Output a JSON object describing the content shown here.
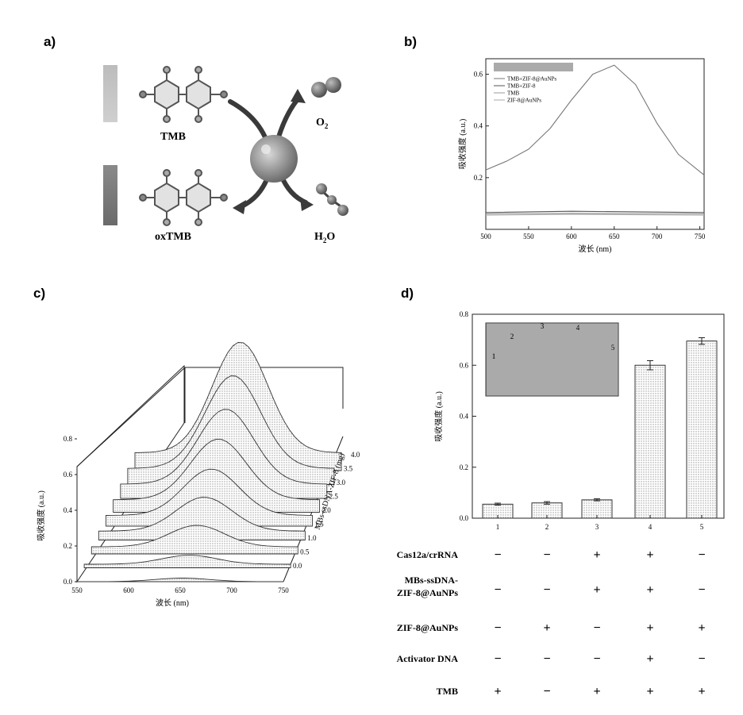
{
  "panels": {
    "a": "a)",
    "b": "b)",
    "c": "c)",
    "d": "d)"
  },
  "scheme": {
    "tmb": "TMB",
    "oxtmb": "oxTMB",
    "o2": "O",
    "o2_sub": "2",
    "h2o_h": "H",
    "h2o_sub": "2",
    "h2o_o": "O"
  },
  "chart_data": [
    {
      "id": "b",
      "type": "line",
      "xlabel": "波长 (nm)",
      "ylabel": "吸收强度 (a.u.)",
      "xlim": [
        500,
        755
      ],
      "ylim": [
        0,
        0.66
      ],
      "xticks": [
        500,
        550,
        600,
        650,
        700,
        750
      ],
      "yticks": [
        0.2,
        0.4,
        0.6
      ],
      "legend_position": "top-left",
      "series": [
        {
          "name": "TMB+ZIF-8@AuNPs",
          "color": "#777777",
          "x": [
            500,
            525,
            550,
            575,
            600,
            625,
            650,
            675,
            700,
            725,
            755
          ],
          "y": [
            0.23,
            0.265,
            0.31,
            0.39,
            0.5,
            0.6,
            0.635,
            0.56,
            0.41,
            0.29,
            0.21
          ]
        },
        {
          "name": "TMB+ZIF-8",
          "color": "#555555",
          "x": [
            500,
            600,
            755
          ],
          "y": [
            0.065,
            0.07,
            0.065
          ]
        },
        {
          "name": "TMB",
          "color": "#999999",
          "x": [
            500,
            600,
            755
          ],
          "y": [
            0.06,
            0.062,
            0.06
          ]
        },
        {
          "name": "ZIF-8@AuNPs",
          "color": "#aaaaaa",
          "x": [
            500,
            600,
            755
          ],
          "y": [
            0.055,
            0.058,
            0.055
          ]
        }
      ]
    },
    {
      "id": "c",
      "type": "line",
      "xlabel": "波长 (nm)",
      "ylabel": "吸收强度 (a.u.)",
      "zlabel": "MBs-ssDNA-ZIF-8 (mg)",
      "xlim": [
        550,
        750
      ],
      "xticks": [
        550,
        600,
        650,
        700,
        750
      ],
      "yticks": [
        0.0,
        0.2,
        0.4,
        0.6,
        0.8
      ],
      "zticks": [
        "0.0",
        "0.5",
        "1.0",
        "1.5",
        "2.0",
        "2.5",
        "3.0",
        "3.5",
        "4.0"
      ],
      "peak_x": 652,
      "series_z": [
        0.0,
        0.5,
        1.0,
        1.5,
        2.0,
        2.5,
        3.0,
        3.5,
        4.0
      ],
      "peak_heights": [
        0.02,
        0.05,
        0.12,
        0.19,
        0.26,
        0.34,
        0.42,
        0.52,
        0.62
      ],
      "baselines": [
        0.0,
        0.02,
        0.04,
        0.05,
        0.06,
        0.07,
        0.08,
        0.09,
        0.1
      ]
    },
    {
      "id": "d",
      "type": "bar",
      "ylabel": "吸收强度 (a.u.)",
      "ylim": [
        0,
        0.8
      ],
      "yticks": [
        "0.0",
        "0.2",
        "0.4",
        "0.6",
        "0.8"
      ],
      "categories": [
        "1",
        "2",
        "3",
        "4",
        "5"
      ],
      "values": [
        0.055,
        0.06,
        0.072,
        0.6,
        0.695
      ],
      "errors": [
        0.004,
        0.005,
        0.004,
        0.018,
        0.013
      ],
      "inset_labels": [
        "1",
        "2",
        "3",
        "4",
        "5"
      ]
    }
  ],
  "table": {
    "rows": [
      {
        "label": "Cas12a/crRNA",
        "signs": [
          "−",
          "−",
          "+",
          "+",
          "−"
        ]
      },
      {
        "label": "MBs-ssDNA-",
        "label2": "ZIF-8@AuNPs",
        "signs": [
          "−",
          "−",
          "+",
          "+",
          "−"
        ]
      },
      {
        "label": "ZIF-8@AuNPs",
        "signs": [
          "−",
          "+",
          "−",
          "+",
          "+"
        ]
      },
      {
        "label": "Activator DNA",
        "signs": [
          "−",
          "−",
          "−",
          "+",
          "−"
        ]
      },
      {
        "label": "TMB",
        "signs": [
          "+",
          "−",
          "+",
          "+",
          "+"
        ]
      }
    ]
  }
}
